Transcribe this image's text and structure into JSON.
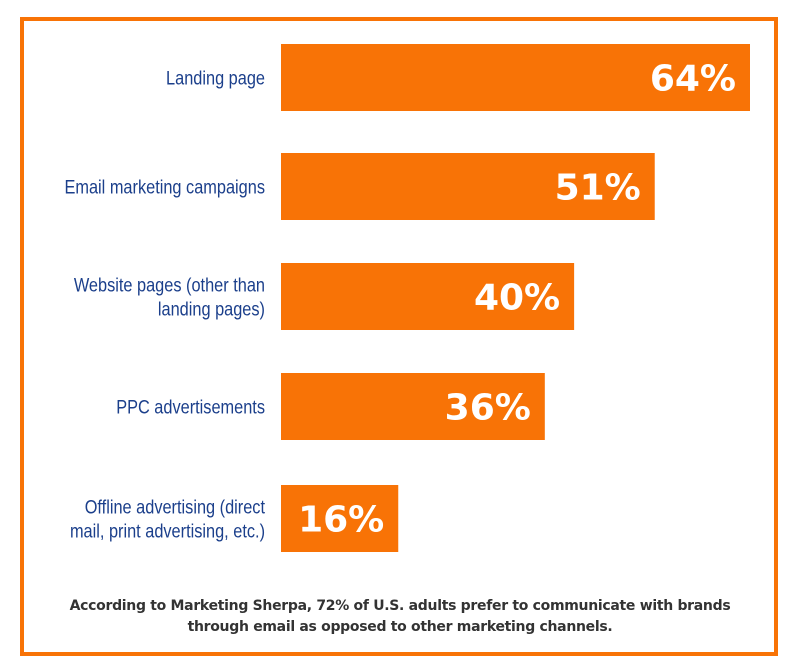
{
  "chart_data": {
    "type": "bar",
    "orientation": "horizontal",
    "categories": [
      [
        "Landing page"
      ],
      [
        "Email marketing campaigns"
      ],
      [
        "Website pages (other than",
        "landing pages)"
      ],
      [
        "PPC advertisements"
      ],
      [
        "Offline advertising (direct",
        "mail, print advertising, etc.)"
      ]
    ],
    "values": [
      64,
      51,
      40,
      36,
      16
    ],
    "data_labels": [
      "64%",
      "51%",
      "40%",
      "36%",
      "16%"
    ],
    "xlim": [
      0,
      64
    ],
    "grid": false,
    "bar_color": "#f87306",
    "label_color": "#1b3f8b",
    "border_color": "#f87306"
  },
  "footnote": {
    "line1": "According to Marketing Sherpa, 72% of U.S. adults prefer to communicate with brands",
    "line2": "through email as opposed to other marketing channels."
  }
}
